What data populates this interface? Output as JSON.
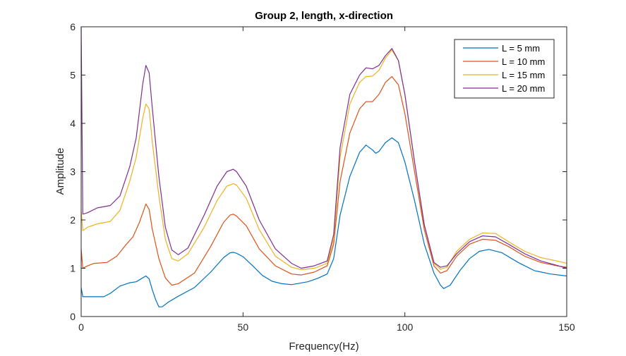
{
  "chart_data": {
    "type": "line",
    "title": "Group 2, length, x-direction",
    "xlabel": "Frequency(Hz)",
    "ylabel": "Amplitude",
    "xlim": [
      0,
      150
    ],
    "ylim": [
      0,
      6
    ],
    "xticks": [
      0,
      50,
      100,
      150
    ],
    "yticks": [
      0,
      1,
      2,
      3,
      4,
      5,
      6
    ],
    "grid": false,
    "legend_position": "top-right",
    "series": [
      {
        "name": "L = 5 mm",
        "color": "#0072BD",
        "points": [
          [
            0,
            0.6
          ],
          [
            0.5,
            0.41
          ],
          [
            3,
            0.41
          ],
          [
            7,
            0.41
          ],
          [
            9,
            0.48
          ],
          [
            12,
            0.63
          ],
          [
            15,
            0.7
          ],
          [
            17,
            0.72
          ],
          [
            19,
            0.8
          ],
          [
            20,
            0.84
          ],
          [
            21,
            0.78
          ],
          [
            22,
            0.55
          ],
          [
            23,
            0.35
          ],
          [
            24,
            0.2
          ],
          [
            25,
            0.2
          ],
          [
            27,
            0.3
          ],
          [
            30,
            0.42
          ],
          [
            35,
            0.6
          ],
          [
            40,
            0.92
          ],
          [
            44,
            1.22
          ],
          [
            46,
            1.32
          ],
          [
            47,
            1.33
          ],
          [
            48,
            1.31
          ],
          [
            50,
            1.24
          ],
          [
            53,
            1.05
          ],
          [
            56,
            0.85
          ],
          [
            59,
            0.73
          ],
          [
            62,
            0.68
          ],
          [
            65,
            0.66
          ],
          [
            70,
            0.72
          ],
          [
            73,
            0.79
          ],
          [
            76,
            0.88
          ],
          [
            78,
            1.2
          ],
          [
            80,
            2.1
          ],
          [
            83,
            2.9
          ],
          [
            86,
            3.4
          ],
          [
            88,
            3.55
          ],
          [
            90,
            3.45
          ],
          [
            91,
            3.38
          ],
          [
            92,
            3.42
          ],
          [
            94,
            3.6
          ],
          [
            96,
            3.7
          ],
          [
            98,
            3.6
          ],
          [
            100,
            3.2
          ],
          [
            103,
            2.4
          ],
          [
            106,
            1.5
          ],
          [
            109,
            0.9
          ],
          [
            111,
            0.65
          ],
          [
            112,
            0.58
          ],
          [
            114,
            0.65
          ],
          [
            117,
            0.95
          ],
          [
            120,
            1.2
          ],
          [
            123,
            1.35
          ],
          [
            126,
            1.39
          ],
          [
            130,
            1.32
          ],
          [
            135,
            1.12
          ],
          [
            140,
            0.95
          ],
          [
            145,
            0.88
          ],
          [
            150,
            0.84
          ]
        ]
      },
      {
        "name": "L = 10 mm",
        "color": "#D95319",
        "points": [
          [
            0,
            1.4
          ],
          [
            0.5,
            1.0
          ],
          [
            2,
            1.05
          ],
          [
            4,
            1.1
          ],
          [
            8,
            1.12
          ],
          [
            11,
            1.25
          ],
          [
            14,
            1.5
          ],
          [
            16,
            1.65
          ],
          [
            18,
            1.95
          ],
          [
            20,
            2.33
          ],
          [
            21,
            2.22
          ],
          [
            22,
            1.8
          ],
          [
            24,
            1.2
          ],
          [
            26,
            0.8
          ],
          [
            28,
            0.65
          ],
          [
            30,
            0.68
          ],
          [
            35,
            0.9
          ],
          [
            40,
            1.45
          ],
          [
            44,
            1.95
          ],
          [
            46,
            2.1
          ],
          [
            47,
            2.12
          ],
          [
            48,
            2.08
          ],
          [
            51,
            1.88
          ],
          [
            55,
            1.4
          ],
          [
            60,
            1.05
          ],
          [
            65,
            0.88
          ],
          [
            68,
            0.86
          ],
          [
            72,
            0.92
          ],
          [
            76,
            1.05
          ],
          [
            78,
            1.5
          ],
          [
            80,
            2.8
          ],
          [
            83,
            3.8
          ],
          [
            86,
            4.3
          ],
          [
            88,
            4.45
          ],
          [
            90,
            4.45
          ],
          [
            92,
            4.6
          ],
          [
            94,
            4.85
          ],
          [
            96,
            4.97
          ],
          [
            98,
            4.8
          ],
          [
            100,
            4.2
          ],
          [
            103,
            3.0
          ],
          [
            106,
            1.8
          ],
          [
            109,
            1.05
          ],
          [
            111,
            0.9
          ],
          [
            113,
            0.95
          ],
          [
            116,
            1.25
          ],
          [
            120,
            1.5
          ],
          [
            124,
            1.6
          ],
          [
            128,
            1.58
          ],
          [
            132,
            1.45
          ],
          [
            137,
            1.25
          ],
          [
            142,
            1.12
          ],
          [
            147,
            1.05
          ],
          [
            150,
            1.02
          ]
        ]
      },
      {
        "name": "L = 15 mm",
        "color": "#EDB120",
        "points": [
          [
            0,
            2.2
          ],
          [
            0.5,
            1.78
          ],
          [
            2,
            1.85
          ],
          [
            5,
            1.92
          ],
          [
            9,
            1.97
          ],
          [
            12,
            2.2
          ],
          [
            15,
            2.8
          ],
          [
            17,
            3.3
          ],
          [
            19,
            4.1
          ],
          [
            20,
            4.4
          ],
          [
            21,
            4.3
          ],
          [
            22,
            3.6
          ],
          [
            24,
            2.5
          ],
          [
            26,
            1.6
          ],
          [
            28,
            1.2
          ],
          [
            30,
            1.15
          ],
          [
            33,
            1.3
          ],
          [
            38,
            1.85
          ],
          [
            42,
            2.4
          ],
          [
            45,
            2.7
          ],
          [
            47,
            2.75
          ],
          [
            48,
            2.72
          ],
          [
            51,
            2.45
          ],
          [
            55,
            1.8
          ],
          [
            60,
            1.25
          ],
          [
            65,
            1.02
          ],
          [
            68,
            0.97
          ],
          [
            72,
            1.0
          ],
          [
            76,
            1.1
          ],
          [
            78,
            1.6
          ],
          [
            80,
            3.3
          ],
          [
            83,
            4.4
          ],
          [
            86,
            4.85
          ],
          [
            88,
            4.97
          ],
          [
            90,
            4.98
          ],
          [
            92,
            5.1
          ],
          [
            94,
            5.35
          ],
          [
            96,
            5.52
          ],
          [
            98,
            5.3
          ],
          [
            100,
            4.6
          ],
          [
            103,
            3.2
          ],
          [
            106,
            1.9
          ],
          [
            109,
            1.1
          ],
          [
            111,
            0.98
          ],
          [
            113,
            1.02
          ],
          [
            116,
            1.35
          ],
          [
            120,
            1.6
          ],
          [
            124,
            1.73
          ],
          [
            128,
            1.72
          ],
          [
            132,
            1.55
          ],
          [
            137,
            1.35
          ],
          [
            142,
            1.22
          ],
          [
            147,
            1.15
          ],
          [
            150,
            1.1
          ]
        ]
      },
      {
        "name": "L = 20 mm",
        "color": "#7E2F8E",
        "points": [
          [
            0,
            6.0
          ],
          [
            0.5,
            2.12
          ],
          [
            2,
            2.15
          ],
          [
            5,
            2.25
          ],
          [
            9,
            2.3
          ],
          [
            12,
            2.5
          ],
          [
            15,
            3.1
          ],
          [
            17,
            3.7
          ],
          [
            19,
            4.8
          ],
          [
            20,
            5.2
          ],
          [
            21,
            5.05
          ],
          [
            22,
            4.3
          ],
          [
            24,
            2.9
          ],
          [
            26,
            1.85
          ],
          [
            28,
            1.38
          ],
          [
            30,
            1.28
          ],
          [
            33,
            1.42
          ],
          [
            38,
            2.1
          ],
          [
            42,
            2.7
          ],
          [
            45,
            3.0
          ],
          [
            47,
            3.05
          ],
          [
            48,
            3.0
          ],
          [
            51,
            2.7
          ],
          [
            55,
            2.0
          ],
          [
            60,
            1.4
          ],
          [
            65,
            1.1
          ],
          [
            68,
            1.0
          ],
          [
            72,
            1.05
          ],
          [
            76,
            1.15
          ],
          [
            78,
            1.7
          ],
          [
            80,
            3.5
          ],
          [
            83,
            4.6
          ],
          [
            86,
            5.0
          ],
          [
            88,
            5.15
          ],
          [
            90,
            5.13
          ],
          [
            92,
            5.2
          ],
          [
            94,
            5.4
          ],
          [
            96,
            5.55
          ],
          [
            98,
            5.3
          ],
          [
            100,
            4.6
          ],
          [
            103,
            3.2
          ],
          [
            106,
            1.9
          ],
          [
            109,
            1.12
          ],
          [
            111,
            1.02
          ],
          [
            113,
            1.05
          ],
          [
            116,
            1.3
          ],
          [
            120,
            1.55
          ],
          [
            124,
            1.67
          ],
          [
            128,
            1.65
          ],
          [
            132,
            1.5
          ],
          [
            137,
            1.3
          ],
          [
            142,
            1.15
          ],
          [
            147,
            1.06
          ],
          [
            150,
            1.0
          ]
        ]
      }
    ]
  }
}
